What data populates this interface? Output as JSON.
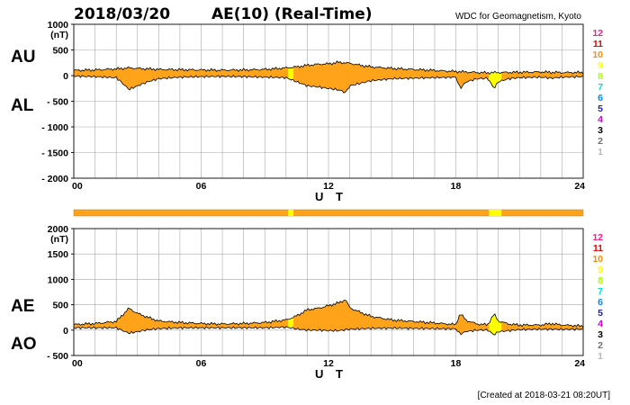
{
  "header": {
    "date": "2018/03/20",
    "title": "AE(10) (Real-Time)",
    "source": "WDC for Geomagnetism, Kyoto",
    "created": "[Created at 2018-03-21 08:20UT]"
  },
  "colors": {
    "fill": "#ffa31a",
    "highlight": "#ffff00",
    "band": "#ffa31a",
    "line": "#000000"
  },
  "chart_data": [
    {
      "type": "area",
      "name": "AU/AL",
      "left_labels": {
        "upper": "AU",
        "lower": "AL"
      },
      "ylim": [
        -2000,
        1000
      ],
      "yticks": [
        1000,
        500,
        0,
        -500,
        -1000,
        -1500,
        -2000
      ],
      "ytick_labels": [
        "1000",
        "500",
        "0",
        "- 500",
        "- 1000",
        "- 1500",
        "- 2000"
      ],
      "unit": "(nT)",
      "xlim": [
        0,
        24
      ],
      "xticks": [
        0,
        6,
        12,
        18,
        24
      ],
      "xtick_labels": [
        "00",
        "06",
        "12",
        "18",
        "24"
      ],
      "xlabel": "U T",
      "series": [
        {
          "name": "AU",
          "x": [
            0,
            1,
            2,
            2.6,
            3,
            3.5,
            4,
            5,
            6,
            7,
            8,
            9,
            10,
            10.5,
            11,
            11.5,
            12,
            12.5,
            13,
            13.5,
            14,
            15,
            16,
            17,
            18,
            18.5,
            19,
            19.5,
            20,
            21,
            22,
            23,
            24
          ],
          "values": [
            100,
            110,
            130,
            150,
            140,
            130,
            120,
            115,
            110,
            105,
            110,
            120,
            150,
            170,
            200,
            220,
            230,
            260,
            240,
            200,
            170,
            140,
            120,
            100,
            80,
            70,
            60,
            55,
            60,
            65,
            70,
            60,
            60
          ]
        },
        {
          "name": "AL",
          "x": [
            0,
            1,
            2,
            2.3,
            2.6,
            3,
            3.5,
            4,
            5,
            6,
            7,
            8,
            9,
            10,
            10.5,
            11,
            11.5,
            12,
            12.5,
            12.8,
            13,
            13.5,
            14,
            15,
            16,
            17,
            18,
            18.2,
            18.5,
            19,
            19.5,
            19.8,
            20,
            20.5,
            21,
            22,
            22.5,
            23,
            24
          ],
          "values": [
            -10,
            -20,
            -40,
            -150,
            -270,
            -200,
            -120,
            -60,
            -30,
            -20,
            -15,
            -20,
            -30,
            -40,
            -120,
            -200,
            -220,
            -250,
            -280,
            -330,
            -200,
            -150,
            -100,
            -60,
            -50,
            -40,
            -30,
            -250,
            -120,
            -60,
            -50,
            -250,
            -120,
            -60,
            -40,
            -30,
            -50,
            -30,
            -20
          ]
        }
      ],
      "highlights": [
        {
          "from": 10.1,
          "to": 10.35
        },
        {
          "from": 19.55,
          "to": 20.15
        }
      ],
      "legend": [
        "12",
        "11",
        "10",
        "9",
        "8",
        "7",
        "6",
        "5",
        "4",
        "3",
        "2",
        "1"
      ],
      "legend_colors": [
        "#ff1a8c",
        "#ee0000",
        "#ff8c00",
        "#ffff00",
        "#a8ff00",
        "#00e0e0",
        "#0088ff",
        "#2020b0",
        "#cc00cc",
        "#000000",
        "#707070",
        "#b8b8b8"
      ]
    },
    {
      "type": "area",
      "name": "AE/AO",
      "left_labels": {
        "upper": "AE",
        "lower": "AO"
      },
      "ylim": [
        -500,
        2000
      ],
      "yticks": [
        2000,
        1500,
        1000,
        500,
        0,
        -500
      ],
      "ytick_labels": [
        "2000",
        "1500",
        "1000",
        "500",
        "0",
        "- 500"
      ],
      "unit": "(nT)",
      "xlim": [
        0,
        24
      ],
      "xticks": [
        0,
        6,
        12,
        18,
        24
      ],
      "xtick_labels": [
        "00",
        "06",
        "12",
        "18",
        "24"
      ],
      "xlabel": "U T",
      "series": [
        {
          "name": "AE",
          "x": [
            0,
            1,
            2,
            2.3,
            2.6,
            3,
            3.5,
            4,
            5,
            6,
            7,
            8,
            9,
            10,
            10.5,
            11,
            11.5,
            12,
            12.5,
            12.8,
            13,
            13.5,
            14,
            15,
            16,
            17,
            18,
            18.2,
            18.5,
            19,
            19.5,
            19.8,
            20,
            20.5,
            21,
            22,
            22.5,
            23,
            24
          ],
          "values": [
            110,
            130,
            170,
            300,
            430,
            330,
            250,
            180,
            150,
            130,
            120,
            130,
            150,
            200,
            280,
            400,
            430,
            480,
            540,
            600,
            440,
            350,
            270,
            200,
            170,
            140,
            110,
            330,
            190,
            120,
            105,
            320,
            180,
            120,
            100,
            100,
            130,
            100,
            80
          ]
        },
        {
          "name": "AO",
          "x": [
            0,
            1,
            2,
            2.6,
            3,
            3.5,
            4,
            5,
            6,
            7,
            8,
            9,
            10,
            10.5,
            11,
            11.5,
            12,
            12.5,
            13,
            13.5,
            14,
            15,
            16,
            17,
            18,
            18.2,
            18.5,
            19,
            19.5,
            19.8,
            20,
            21,
            22,
            23,
            24
          ],
          "values": [
            45,
            45,
            45,
            -60,
            -30,
            10,
            30,
            45,
            45,
            45,
            47,
            45,
            60,
            25,
            0,
            0,
            -10,
            -10,
            20,
            25,
            35,
            40,
            35,
            30,
            25,
            -80,
            -25,
            0,
            5,
            -95,
            -30,
            10,
            20,
            15,
            20
          ]
        }
      ],
      "highlights": [
        {
          "from": 10.1,
          "to": 10.35
        },
        {
          "from": 19.55,
          "to": 20.15
        }
      ],
      "band_highlights": [
        {
          "from": 10.1,
          "to": 10.35
        },
        {
          "from": 19.55,
          "to": 20.15
        }
      ],
      "legend": [
        "12",
        "11",
        "10",
        "9",
        "8",
        "7",
        "6",
        "5",
        "4",
        "3",
        "2",
        "1"
      ],
      "legend_colors": [
        "#ff1a8c",
        "#ee0000",
        "#ff8c00",
        "#ffff00",
        "#a8ff00",
        "#00e0e0",
        "#0088ff",
        "#2020b0",
        "#cc00cc",
        "#000000",
        "#707070",
        "#b8b8b8"
      ]
    }
  ]
}
